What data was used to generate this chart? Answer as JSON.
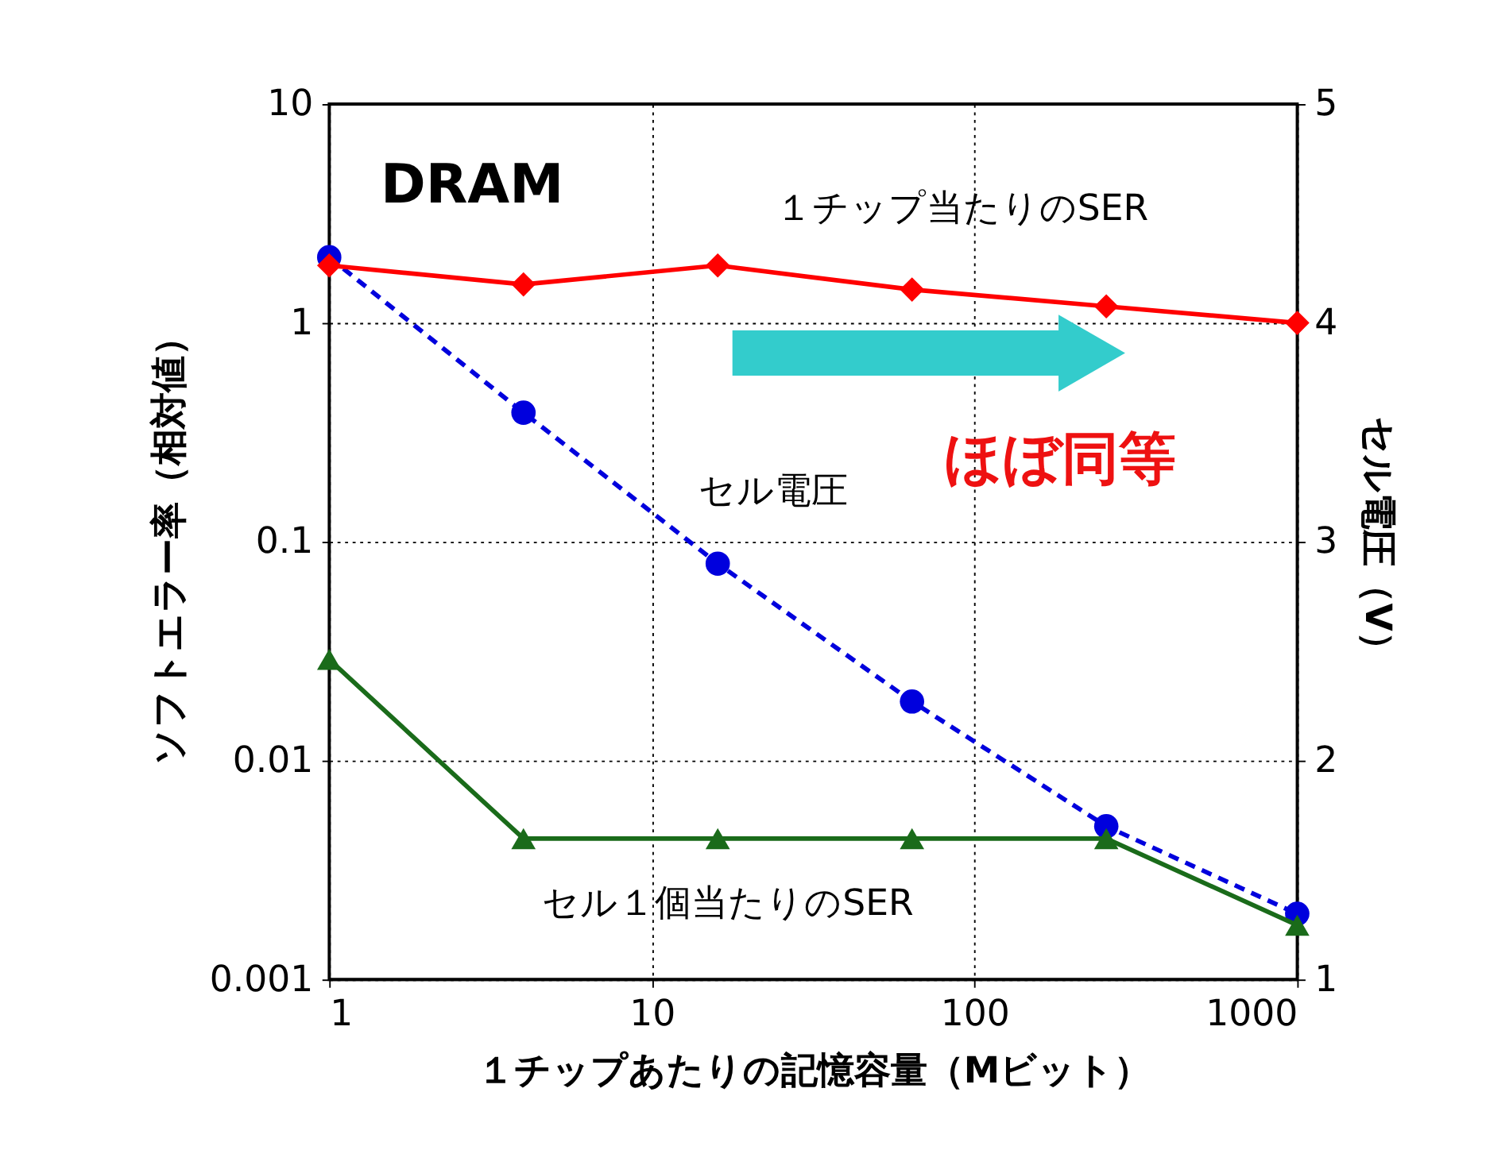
{
  "chart_data": {
    "type": "line",
    "xlabel": "１チップあたりの記憶容量（Mビット）",
    "ylabel": "ソフトエラー率（相対値）",
    "y2label": "セル電圧（V）",
    "x": [
      1,
      4,
      16,
      64,
      256,
      1000
    ],
    "series": [
      {
        "color": "#ff0000",
        "marker": "diamond",
        "line_style": "solid",
        "values": [
          1.83,
          1.5,
          1.83,
          1.42,
          1.19,
          1.0
        ]
      },
      {
        "color": "#1a6b1a",
        "marker": "triangle",
        "line_style": "solid",
        "values": [
          0.029,
          0.0044,
          0.0044,
          0.0044,
          0.0044,
          0.00177
        ]
      },
      {
        "color": "#0000dd",
        "marker": "circle",
        "line_style": "dashed",
        "axis": "y2",
        "values": [
          4.3,
          3.59,
          2.9,
          2.27,
          1.7,
          1.3
        ]
      }
    ],
    "log": "xy",
    "xlim": [
      1,
      1000
    ],
    "xticks": [
      1,
      10,
      100,
      1000
    ],
    "ylim": [
      0.001,
      10
    ],
    "yticks": [
      0.001,
      0.01,
      0.1,
      1,
      10
    ],
    "y2lim": [
      1,
      5
    ],
    "y2ticks": [
      1,
      2,
      3,
      4,
      5
    ],
    "grid": true,
    "annotations": [
      "DRAM",
      "１チップ当たりのSER",
      "セル電圧",
      "セル１個当たりのSER",
      "ほぼ同等"
    ]
  }
}
